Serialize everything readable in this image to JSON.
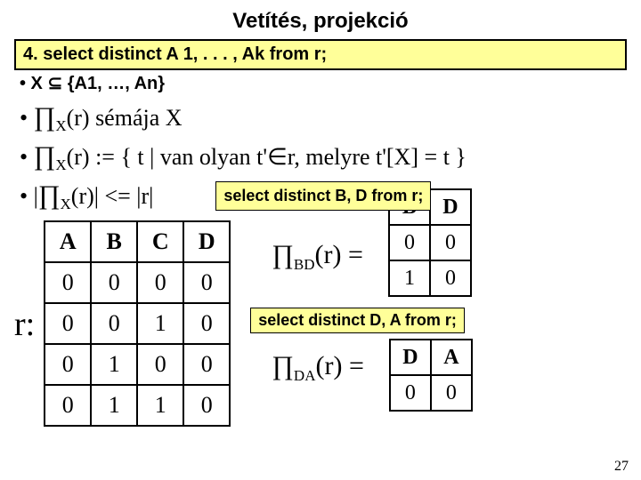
{
  "title": "Vetítés, projekció",
  "sqlbox": "4. select distinct A 1, . . . , Ak from r;",
  "bullet1_raw": "•  X ⊆ {A1, …, An}",
  "lines": {
    "l1": {
      "lead": "• ",
      "pi": "∏",
      "sub": "X",
      "rest": "(r) sémája X"
    },
    "l2": {
      "lead": "• ",
      "pi": "∏",
      "sub": "X",
      "rest": "(r) := { t | van olyan t'∈r, melyre t'[X] = t }"
    },
    "l3": {
      "lead": "• |",
      "pi": "∏",
      "sub": "X",
      "rest": "(r)| <= |r|"
    }
  },
  "rlabel": "r:",
  "table_main": {
    "headers": [
      "A",
      "B",
      "C",
      "D"
    ],
    "rows": [
      [
        "0",
        "0",
        "0",
        "0"
      ],
      [
        "0",
        "0",
        "1",
        "0"
      ],
      [
        "0",
        "1",
        "0",
        "0"
      ],
      [
        "0",
        "1",
        "1",
        "0"
      ]
    ]
  },
  "sel_bd": "select distinct B, D from r;",
  "table_bd": {
    "headers": [
      "B",
      "D"
    ],
    "rows": [
      [
        "0",
        "0"
      ],
      [
        "1",
        "0"
      ]
    ]
  },
  "proj_bd": {
    "pi": "∏",
    "sub": "BD",
    "rest": "(r) ="
  },
  "sel_da": "select distinct D, A from r;",
  "table_da": {
    "headers": [
      "D",
      "A"
    ],
    "rows": [
      [
        "0",
        "0"
      ]
    ]
  },
  "proj_da": {
    "pi": "∏",
    "sub": "DA",
    "rest": "(r) ="
  },
  "page": "27"
}
